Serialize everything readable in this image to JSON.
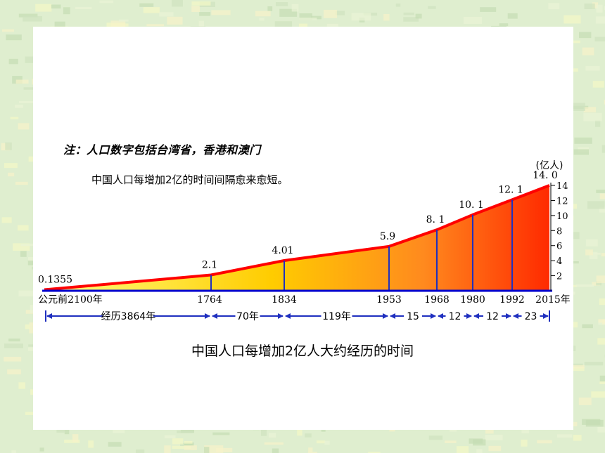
{
  "note": "注：人口数字包括台湾省，香港和澳门",
  "subtitle": "中国人口每增加2亿的时间间隔愈来愈短。",
  "caption": "中国人口每增加2亿人大约经历的时间",
  "chart_data": {
    "type": "area",
    "points": [
      {
        "year": "公元前2100年",
        "value": 0.1355,
        "label": "0.1355"
      },
      {
        "year": "1764",
        "value": 2.1,
        "label": "2.1"
      },
      {
        "year": "1834",
        "value": 4.01,
        "label": "4.01"
      },
      {
        "year": "1953",
        "value": 5.9,
        "label": "5.9"
      },
      {
        "year": "1968",
        "value": 8.1,
        "label": "8. 1"
      },
      {
        "year": "1980",
        "value": 10.1,
        "label": "10. 1"
      },
      {
        "year": "1992",
        "value": 12.1,
        "label": "12. 1"
      },
      {
        "year": "2015年",
        "value": 14.0,
        "label": "14. 0"
      }
    ],
    "y_unit": "(亿人)",
    "y_ticks": [
      "2",
      "4",
      "6",
      "8",
      "10",
      "12",
      "14"
    ],
    "ylim": [
      0,
      14
    ],
    "intervals": [
      "经历3864年",
      "70年",
      "119年",
      "15",
      "12",
      "12",
      "23"
    ],
    "colors": {
      "start": "#ffff80",
      "end": "#ff2a00",
      "top_line": "#ff0000",
      "dividers": "#1f2fbf",
      "baseline": "#0000cc"
    }
  }
}
